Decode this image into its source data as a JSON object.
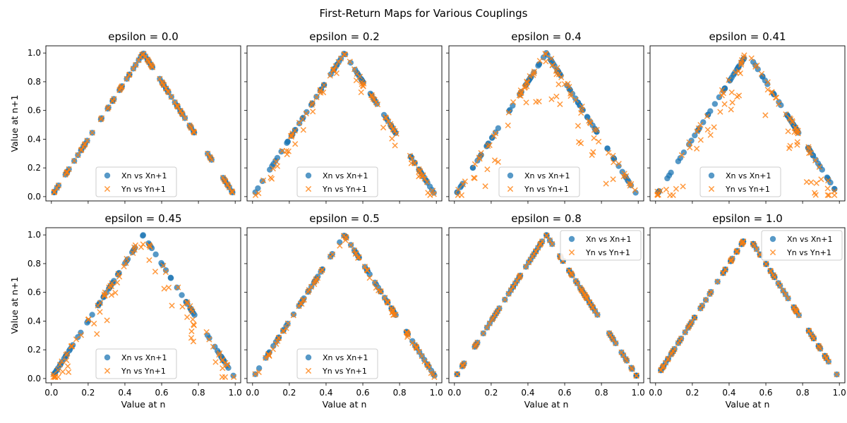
{
  "figure": {
    "suptitle": "First-Return Maps for Various Couplings"
  },
  "colors": {
    "x_series": "#1f77b4",
    "y_series": "#ff7f0e"
  },
  "chart_data": [
    {
      "type": "scatter",
      "title": "epsilon = 0.0",
      "xlabel": "",
      "ylabel": "Value at n+1",
      "xlim": [
        -0.03,
        1.03
      ],
      "ylim": [
        -0.03,
        1.05
      ],
      "legend": "lower center",
      "xticks": [
        "0.0",
        "0.2",
        "0.4",
        "0.6",
        "0.8",
        "1.0"
      ],
      "yticks": [
        "0.0",
        "0.2",
        "0.4",
        "0.6",
        "0.8",
        "1.0"
      ],
      "map_type": "tent",
      "scatter_level": 0.0,
      "series": [
        {
          "name": "Xn vs Xn+1",
          "marker": "circle"
        },
        {
          "name": "Yn vs Yn+1",
          "marker": "x"
        }
      ]
    },
    {
      "type": "scatter",
      "title": "epsilon = 0.2",
      "xlabel": "",
      "ylabel": "",
      "xlim": [
        -0.03,
        1.03
      ],
      "ylim": [
        -0.03,
        1.05
      ],
      "legend": "lower center",
      "xticks": [
        "0.0",
        "0.2",
        "0.4",
        "0.6",
        "0.8",
        "1.0"
      ],
      "yticks": [
        "0.0",
        "0.2",
        "0.4",
        "0.6",
        "0.8",
        "1.0"
      ],
      "map_type": "tent",
      "scatter_level": 0.07,
      "series": [
        {
          "name": "Xn vs Xn+1",
          "marker": "circle"
        },
        {
          "name": "Yn vs Yn+1",
          "marker": "x"
        }
      ]
    },
    {
      "type": "scatter",
      "title": "epsilon = 0.4",
      "xlabel": "",
      "ylabel": "",
      "xlim": [
        -0.03,
        1.03
      ],
      "ylim": [
        -0.03,
        1.05
      ],
      "legend": "lower center",
      "xticks": [
        "0.0",
        "0.2",
        "0.4",
        "0.6",
        "0.8",
        "1.0"
      ],
      "yticks": [
        "0.0",
        "0.2",
        "0.4",
        "0.6",
        "0.8",
        "1.0"
      ],
      "map_type": "tent",
      "scatter_level": 0.2,
      "series": [
        {
          "name": "Xn vs Xn+1",
          "marker": "circle"
        },
        {
          "name": "Yn vs Yn+1",
          "marker": "x"
        }
      ]
    },
    {
      "type": "scatter",
      "title": "epsilon = 0.41",
      "xlabel": "",
      "ylabel": "",
      "xlim": [
        -0.03,
        1.03
      ],
      "ylim": [
        -0.03,
        1.05
      ],
      "legend": "lower center",
      "xticks": [
        "0.0",
        "0.2",
        "0.4",
        "0.6",
        "0.8",
        "1.0"
      ],
      "yticks": [
        "0.0",
        "0.2",
        "0.4",
        "0.6",
        "0.8",
        "1.0"
      ],
      "map_type": "tent",
      "scatter_level": 0.2,
      "series": [
        {
          "name": "Xn vs Xn+1",
          "marker": "circle"
        },
        {
          "name": "Yn vs Yn+1",
          "marker": "x"
        }
      ]
    },
    {
      "type": "scatter",
      "title": "epsilon = 0.45",
      "xlabel": "Value at n",
      "ylabel": "Value at n+1",
      "xlim": [
        -0.03,
        1.03
      ],
      "ylim": [
        -0.03,
        1.05
      ],
      "legend": "lower center",
      "xticks": [
        "0.0",
        "0.2",
        "0.4",
        "0.6",
        "0.8",
        "1.0"
      ],
      "yticks": [
        "0.0",
        "0.2",
        "0.4",
        "0.6",
        "0.8",
        "1.0"
      ],
      "map_type": "tent",
      "scatter_level": 0.15,
      "series": [
        {
          "name": "Xn vs Xn+1",
          "marker": "circle"
        },
        {
          "name": "Yn vs Yn+1",
          "marker": "x"
        }
      ]
    },
    {
      "type": "scatter",
      "title": "epsilon = 0.5",
      "xlabel": "Value at n",
      "ylabel": "",
      "xlim": [
        -0.03,
        1.03
      ],
      "ylim": [
        -0.03,
        1.05
      ],
      "legend": "lower center",
      "xticks": [
        "0.0",
        "0.2",
        "0.4",
        "0.6",
        "0.8",
        "1.0"
      ],
      "yticks": [
        "0.0",
        "0.2",
        "0.4",
        "0.6",
        "0.8",
        "1.0"
      ],
      "map_type": "tent",
      "scatter_level": 0.02,
      "series": [
        {
          "name": "Xn vs Xn+1",
          "marker": "circle"
        },
        {
          "name": "Yn vs Yn+1",
          "marker": "x"
        }
      ]
    },
    {
      "type": "scatter",
      "title": "epsilon = 0.8",
      "xlabel": "Value at n",
      "ylabel": "",
      "xlim": [
        -0.03,
        1.03
      ],
      "ylim": [
        -0.03,
        1.05
      ],
      "legend": "upper right",
      "xticks": [
        "0.0",
        "0.2",
        "0.4",
        "0.6",
        "0.8",
        "1.0"
      ],
      "yticks": [
        "0.0",
        "0.2",
        "0.4",
        "0.6",
        "0.8",
        "1.0"
      ],
      "map_type": "tent",
      "scatter_level": 0.0,
      "series": [
        {
          "name": "Xn vs Xn+1",
          "marker": "circle"
        },
        {
          "name": "Yn vs Yn+1",
          "marker": "x"
        }
      ]
    },
    {
      "type": "scatter",
      "title": "epsilon = 1.0",
      "xlabel": "Value at n",
      "ylabel": "",
      "xlim": [
        -0.03,
        1.03
      ],
      "ylim": [
        -0.03,
        1.05
      ],
      "legend": "upper right",
      "xticks": [
        "0.0",
        "0.2",
        "0.4",
        "0.6",
        "0.8",
        "1.0"
      ],
      "yticks": [
        "0.0",
        "0.2",
        "0.4",
        "0.6",
        "0.8",
        "1.0"
      ],
      "map_type": "tent",
      "scatter_level": 0.0,
      "series": [
        {
          "name": "Xn vs Xn+1",
          "marker": "circle"
        },
        {
          "name": "Yn vs Yn+1",
          "marker": "x"
        }
      ]
    }
  ]
}
